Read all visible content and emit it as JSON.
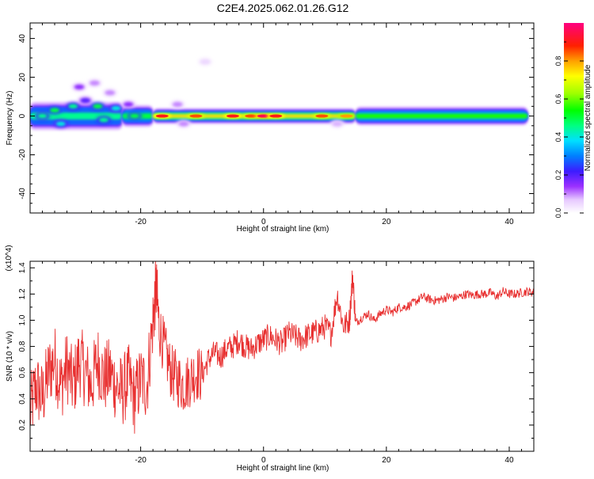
{
  "page": {
    "title": "C2E4.2025.062.01.26.G12"
  },
  "chart_data": [
    {
      "type": "heatmap",
      "title": "C2E4.2025.062.01.26.G12",
      "xlabel": "Height of straight line (km)",
      "ylabel": "Frequency (Hz)",
      "xlim": [
        -38,
        44
      ],
      "ylim": [
        -50,
        48
      ],
      "x_ticks": [
        -20,
        0,
        20,
        40
      ],
      "x_tick_labels": [
        "-20",
        "0",
        "20",
        "40"
      ],
      "y_ticks": [
        -40,
        -20,
        0,
        20,
        40
      ],
      "y_tick_labels": [
        "-40",
        "-20",
        "0",
        "20",
        "40"
      ],
      "colorbar": {
        "label": "Normalized spectral amplitude",
        "range": [
          0,
          1
        ],
        "ticks": [
          0.0,
          0.2,
          0.4,
          0.6,
          0.8
        ],
        "tick_labels": [
          "0.0",
          "0.2",
          "0.4",
          "0.6",
          "0.8"
        ]
      },
      "band": {
        "center_hz": 0,
        "segments": [
          {
            "x_start": -38,
            "x_end": -23,
            "half_width_hz": 4.5,
            "amplitude": 0.45
          },
          {
            "x_start": -23,
            "x_end": -18,
            "half_width_hz": 3.5,
            "amplitude": 0.5
          },
          {
            "x_start": -18,
            "x_end": 15,
            "half_width_hz": 2.5,
            "amplitude": 0.75
          },
          {
            "x_start": 15,
            "x_end": 43,
            "half_width_hz": 3.0,
            "amplitude": 0.55
          }
        ],
        "peaks": [
          {
            "x": -16.5,
            "amplitude": 0.9
          },
          {
            "x": -11,
            "amplitude": 0.85
          },
          {
            "x": -5,
            "amplitude": 0.9
          },
          {
            "x": -2,
            "amplitude": 0.85
          },
          {
            "x": 0,
            "amplitude": 0.95
          },
          {
            "x": 2,
            "amplitude": 0.9
          },
          {
            "x": 9.5,
            "amplitude": 0.85
          },
          {
            "x": 13.5,
            "amplitude": 0.8
          }
        ]
      },
      "blobs": [
        {
          "x": -36,
          "freq_hz": 0,
          "amplitude": 0.45
        },
        {
          "x": -34,
          "freq_hz": 3,
          "amplitude": 0.5
        },
        {
          "x": -33,
          "freq_hz": -4,
          "amplitude": 0.4
        },
        {
          "x": -31,
          "freq_hz": 5,
          "amplitude": 0.45
        },
        {
          "x": -30,
          "freq_hz": 15,
          "amplitude": 0.15
        },
        {
          "x": -29,
          "freq_hz": 8,
          "amplitude": 0.2
        },
        {
          "x": -27.5,
          "freq_hz": 17,
          "amplitude": 0.1
        },
        {
          "x": -27,
          "freq_hz": 5,
          "amplitude": 0.5
        },
        {
          "x": -26,
          "freq_hz": -2,
          "amplitude": 0.45
        },
        {
          "x": -25,
          "freq_hz": 12,
          "amplitude": 0.1
        },
        {
          "x": -24,
          "freq_hz": 4,
          "amplitude": 0.4
        },
        {
          "x": -22,
          "freq_hz": 6,
          "amplitude": 0.15
        },
        {
          "x": -21,
          "freq_hz": 0,
          "amplitude": 0.5
        },
        {
          "x": -14,
          "freq_hz": 6,
          "amplitude": 0.1
        },
        {
          "x": -9.5,
          "freq_hz": 28,
          "amplitude": 0.05
        },
        {
          "x": -13,
          "freq_hz": -4,
          "amplitude": 0.1
        },
        {
          "x": 12,
          "freq_hz": -4,
          "amplitude": 0.08
        }
      ]
    },
    {
      "type": "line",
      "xlabel": "Height of straight line (km)",
      "ylabel": "SNR (10 * v/v)",
      "y_scale_label": "(x10^4)",
      "xlim": [
        -38,
        44
      ],
      "ylim": [
        0,
        1.45
      ],
      "x_ticks": [
        -20,
        0,
        20,
        40
      ],
      "x_tick_labels": [
        "-20",
        "0",
        "20",
        "40"
      ],
      "y_ticks": [
        0.2,
        0.4,
        0.6,
        0.8,
        1.0,
        1.2,
        1.4
      ],
      "y_tick_labels": [
        "0.2",
        "0.4",
        "0.6",
        "0.8",
        "1.0",
        "1.2",
        "1.4"
      ],
      "series": [
        {
          "color": "#e83030",
          "x": [
            -38,
            -37,
            -36,
            -35,
            -34,
            -33,
            -32,
            -31,
            -30,
            -29,
            -28,
            -27,
            -26,
            -25,
            -24,
            -23,
            -22,
            -21,
            -20,
            -19,
            -18,
            -17.5,
            -17,
            -16,
            -15,
            -14,
            -13,
            -12,
            -11,
            -10,
            -9,
            -8,
            -7,
            -6,
            -5,
            -4,
            -3,
            -2,
            -1,
            0,
            1,
            2,
            3,
            4,
            5,
            6,
            7,
            8,
            9,
            10,
            11,
            12,
            13,
            14,
            14.5,
            15,
            16,
            17,
            18,
            19,
            20,
            21,
            22,
            23,
            24,
            25,
            26,
            27,
            28,
            29,
            30,
            31,
            32,
            33,
            34,
            35,
            36,
            37,
            38,
            39,
            40,
            41,
            42,
            43,
            44
          ],
          "y": [
            0.3,
            0.5,
            0.4,
            0.6,
            0.7,
            0.5,
            0.65,
            0.5,
            0.7,
            0.6,
            0.5,
            0.7,
            0.55,
            0.6,
            0.5,
            0.45,
            0.55,
            0.4,
            0.55,
            0.5,
            1.0,
            1.25,
            0.95,
            0.75,
            0.6,
            0.55,
            0.5,
            0.55,
            0.6,
            0.58,
            0.7,
            0.75,
            0.72,
            0.78,
            0.8,
            0.85,
            0.8,
            0.78,
            0.82,
            0.85,
            0.88,
            0.85,
            0.82,
            0.9,
            0.88,
            0.85,
            0.88,
            0.9,
            0.92,
            0.95,
            0.9,
            1.2,
            0.95,
            1.0,
            1.35,
            0.98,
            1.02,
            1.05,
            1.0,
            1.05,
            1.08,
            1.06,
            1.1,
            1.1,
            1.12,
            1.15,
            1.18,
            1.16,
            1.15,
            1.16,
            1.18,
            1.17,
            1.18,
            1.2,
            1.19,
            1.2,
            1.2,
            1.21,
            1.18,
            1.22,
            1.2,
            1.2,
            1.21,
            1.22,
            1.21
          ]
        }
      ]
    }
  ]
}
